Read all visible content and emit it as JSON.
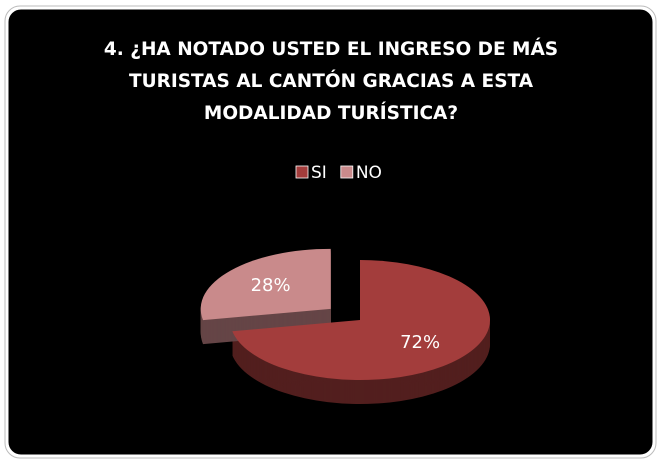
{
  "chart_data": {
    "type": "pie",
    "title": "4. ¿HA NOTADO USTED EL INGRESO DE MÁS TURISTAS AL CANTÓN GRACIAS A ESTA MODALIDAD TURÍSTICA?",
    "categories": [
      "SI",
      "NO"
    ],
    "values": [
      72,
      28
    ],
    "value_labels": [
      "72%",
      "28%"
    ],
    "colors": [
      "#a33d3c",
      "#c98a8b"
    ],
    "legend": "top"
  }
}
